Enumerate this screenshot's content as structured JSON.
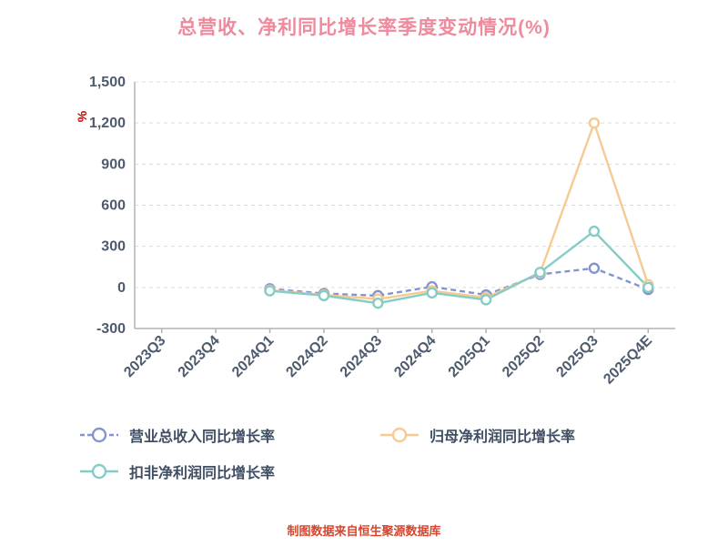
{
  "title": "总营收、净利同比增长率季度变动情况(%)",
  "y_axis_label": "%",
  "footer": "制图数据来自恒生聚源数据库",
  "colors": {
    "title": "#ee8a9c",
    "axis_text": "#4e5b6e",
    "grid": "#dcdcdc",
    "axis_line": "#b3b3b3",
    "footer_text": "#d9442c",
    "unit_label": "#c00000"
  },
  "chart_data": {
    "type": "line",
    "categories": [
      "2023Q3",
      "2023Q4",
      "2024Q1",
      "2024Q2",
      "2024Q3",
      "2024Q4",
      "2025Q1",
      "2025Q2",
      "2025Q3",
      "2025Q4E"
    ],
    "series": [
      {
        "name": "营业总收入同比增长率",
        "color": "#8494cd",
        "dash": "6 4",
        "values": [
          null,
          null,
          -10,
          -45,
          -60,
          5,
          -55,
          95,
          140,
          -15
        ]
      },
      {
        "name": "归母净利润同比增长率",
        "color": "#f7ca92",
        "dash": null,
        "values": [
          null,
          null,
          -20,
          -55,
          -85,
          -25,
          -75,
          105,
          1200,
          20
        ]
      },
      {
        "name": "扣非净利润同比增长率",
        "color": "#85ccc6",
        "dash": null,
        "values": [
          null,
          null,
          -25,
          -60,
          -115,
          -40,
          -90,
          110,
          410,
          0
        ]
      }
    ],
    "title": "总营收、净利同比增长率季度变动情况(%)",
    "xlabel": "",
    "ylabel": "%",
    "ylim": [
      -300,
      1500
    ],
    "yticks": [
      -300,
      0,
      300,
      600,
      900,
      1200,
      1500
    ],
    "grid": true,
    "legend_position": "bottom"
  }
}
